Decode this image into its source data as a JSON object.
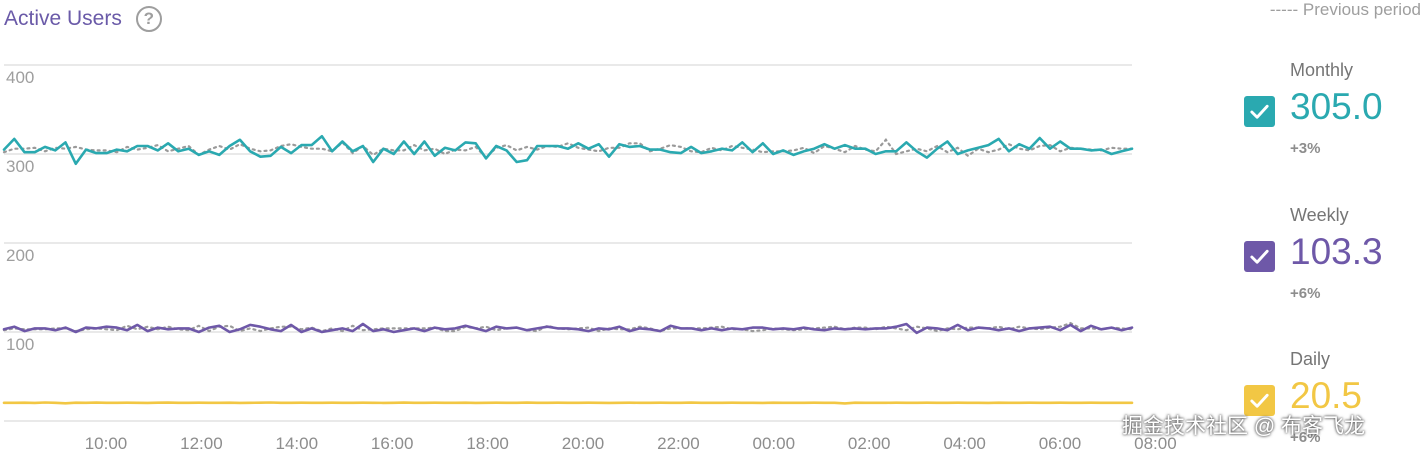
{
  "header": {
    "title": "Active Users",
    "help_icon": "question-mark-icon",
    "previous_period_label": "----- Previous period"
  },
  "chart_data": {
    "type": "line",
    "ylim": [
      0,
      400
    ],
    "yticks": [
      "100",
      "200",
      "300",
      "400"
    ],
    "xticks": [
      "10:00",
      "12:00",
      "14:00",
      "16:00",
      "18:00",
      "20:00",
      "22:00",
      "00:00",
      "02:00",
      "04:00",
      "06:00",
      "08:00"
    ],
    "grid": true,
    "legend_position": "right",
    "series": [
      {
        "name": "Monthly",
        "color": "#2aa9b0",
        "values": [
          305,
          317,
          302,
          302,
          308,
          304,
          313,
          289,
          305,
          301,
          301,
          305,
          303,
          309,
          309,
          304,
          312,
          303,
          306,
          299,
          303,
          299,
          309,
          316,
          303,
          297,
          298,
          308,
          301,
          310,
          310,
          320,
          303,
          314,
          303,
          309,
          291,
          306,
          300,
          314,
          300,
          314,
          298,
          307,
          304,
          313,
          312,
          295,
          309,
          304,
          291,
          293,
          309,
          309,
          309,
          306,
          312,
          306,
          311,
          297,
          311,
          308,
          309,
          305,
          305,
          302,
          301,
          308,
          301,
          303,
          306,
          304,
          313,
          302,
          312,
          300,
          304,
          299,
          303,
          306,
          311,
          306,
          310,
          306,
          306,
          300,
          303,
          303,
          313,
          303,
          296,
          306,
          314,
          300,
          304,
          307,
          310,
          317,
          303,
          311,
          306,
          318,
          306,
          314,
          306,
          306,
          304,
          305,
          300,
          303,
          306
        ],
        "previous": [
          302,
          306,
          306,
          307,
          303,
          307,
          306,
          308,
          305,
          304,
          304,
          302,
          308,
          305,
          307,
          310,
          303,
          306,
          309,
          299,
          305,
          309,
          305,
          311,
          306,
          303,
          304,
          309,
          311,
          308,
          306,
          306,
          303,
          313,
          301,
          309,
          299,
          306,
          304,
          304,
          310,
          304,
          306,
          300,
          305,
          304,
          308,
          296,
          307,
          310,
          304,
          308,
          305,
          309,
          308,
          312,
          307,
          305,
          303,
          307,
          307,
          312,
          312,
          303,
          306,
          310,
          308,
          303,
          302,
          307,
          304,
          309,
          307,
          305,
          302,
          303,
          303,
          304,
          307,
          301,
          309,
          306,
          302,
          309,
          305,
          303,
          316,
          300,
          303,
          306,
          303,
          309,
          302,
          307,
          298,
          306,
          302,
          305,
          311,
          306,
          304,
          309,
          310,
          303,
          307,
          306,
          305,
          304,
          307,
          306,
          306
        ]
      },
      {
        "name": "Weekly",
        "color": "#6e58a8",
        "values": [
          103,
          106,
          101,
          104,
          104,
          102,
          105,
          100,
          105,
          104,
          106,
          105,
          102,
          108,
          101,
          105,
          103,
          104,
          104,
          100,
          105,
          107,
          100,
          103,
          108,
          106,
          103,
          101,
          108,
          100,
          104,
          100,
          102,
          104,
          101,
          109,
          101,
          103,
          100,
          102,
          104,
          101,
          105,
          103,
          104,
          107,
          104,
          101,
          106,
          104,
          105,
          102,
          104,
          106,
          104,
          104,
          103,
          101,
          104,
          103,
          106,
          101,
          104,
          103,
          101,
          107,
          104,
          104,
          102,
          104,
          102,
          104,
          103,
          105,
          105,
          103,
          104,
          103,
          105,
          103,
          102,
          104,
          103,
          104,
          103,
          104,
          104,
          106,
          109,
          99,
          105,
          104,
          102,
          108,
          102,
          105,
          104,
          102,
          104,
          101,
          104,
          105,
          106,
          102,
          108,
          101,
          107,
          103,
          105,
          102,
          105
        ],
        "previous": [
          102,
          104,
          103,
          103,
          103,
          104,
          104,
          101,
          103,
          104,
          103,
          102,
          107,
          103,
          106,
          103,
          106,
          103,
          102,
          107,
          101,
          106,
          107,
          101,
          104,
          101,
          104,
          106,
          106,
          103,
          105,
          101,
          104,
          101,
          107,
          102,
          103,
          104,
          104,
          104,
          104,
          104,
          105,
          101,
          101,
          106,
          104,
          106,
          102,
          104,
          105,
          102,
          101,
          107,
          104,
          103,
          104,
          105,
          101,
          104,
          103,
          103,
          106,
          104,
          101,
          104,
          104,
          104,
          104,
          105,
          106,
          103,
          103,
          101,
          102,
          104,
          103,
          102,
          103,
          104,
          105,
          106,
          103,
          105,
          105,
          103,
          106,
          104,
          102,
          106,
          104,
          101,
          104,
          103,
          105,
          105,
          104,
          106,
          103,
          106,
          104,
          103,
          105,
          106,
          110,
          104,
          104,
          103,
          105,
          104,
          103
        ]
      },
      {
        "name": "Daily",
        "color": "#f2c744",
        "values": [
          20.5,
          20.4,
          20.6,
          20.3,
          20.8,
          20.5,
          19.9,
          20.6,
          20.5,
          20.7,
          20.4,
          20.5,
          20.6,
          20.5,
          20.3,
          20.6,
          20.7,
          20.4,
          20.5,
          20.6,
          20.4,
          20.5,
          20.6,
          20.3,
          20.5,
          20.6,
          20.8,
          20.5,
          20.4,
          20.6,
          20.5,
          20.5,
          20.6,
          20.4,
          20.5,
          20.6,
          20.5,
          20.3,
          20.5,
          20.7,
          20.5,
          20.4,
          20.6,
          20.5,
          20.5,
          20.6,
          20.3,
          20.5,
          20.6,
          20.5,
          20.4,
          20.7,
          20.5,
          20.5,
          20.6,
          20.4,
          20.5,
          20.6,
          20.5,
          20.3,
          20.5,
          20.6,
          20.5,
          20.4,
          20.6,
          20.5,
          20.5,
          20.7,
          20.5,
          20.4,
          20.5,
          20.6,
          20.5,
          20.5,
          20.3,
          20.6,
          20.5,
          20.5,
          20.4,
          20.6,
          20.5,
          20.5,
          19.8,
          20.6,
          20.5,
          20.5,
          20.4,
          20.6,
          20.5,
          20.5,
          20.6,
          20.4,
          20.5,
          20.6,
          20.5,
          20.5,
          20.3,
          20.6,
          20.5,
          20.5,
          20.6,
          20.5,
          20.4,
          20.6,
          20.5,
          20.5,
          20.6,
          20.5,
          20.4,
          20.5,
          20.5
        ],
        "previous": []
      }
    ]
  },
  "legend": {
    "items": [
      {
        "name": "Monthly",
        "value": "305.0",
        "change": "+3%",
        "color": "#2aa9b0",
        "checked": true,
        "icon": "checkbox-checked-icon"
      },
      {
        "name": "Weekly",
        "value": "103.3",
        "change": "+6%",
        "color": "#6e58a8",
        "checked": true,
        "icon": "checkbox-checked-icon"
      },
      {
        "name": "Daily",
        "value": "20.5",
        "change": "+6%",
        "color": "#f2c744",
        "checked": true,
        "icon": "checkbox-checked-icon"
      }
    ]
  },
  "watermark": "掘金技术社区 @ 布客飞龙"
}
